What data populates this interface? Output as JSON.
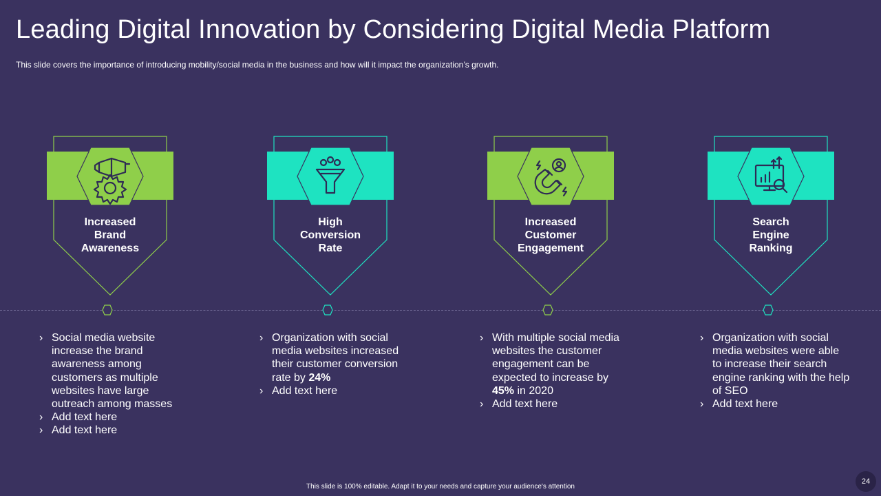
{
  "header": {
    "title": "Leading Digital Innovation by Considering Digital Media Platform",
    "subtitle": "This slide covers the importance of introducing mobility/social media in the business and how will it impact the organization’s growth."
  },
  "colors": {
    "background": "#3a325f",
    "green": "#8fcf4a",
    "teal": "#1ee3c1",
    "icon_stroke": "#2e2a55"
  },
  "cards": [
    {
      "icon": "megaphone-badge-icon",
      "label_lines": [
        "Increased",
        "Brand",
        "Awareness"
      ],
      "accent": "green",
      "bullets": [
        {
          "pre": "Social media website increase the brand awareness among customers as multiple websites have large outreach among masses",
          "bold": "",
          "post": ""
        },
        {
          "pre": "Add text here",
          "bold": "",
          "post": ""
        },
        {
          "pre": "Add text here",
          "bold": "",
          "post": ""
        }
      ]
    },
    {
      "icon": "funnel-icon",
      "label_lines": [
        "High",
        "Conversion",
        "Rate"
      ],
      "accent": "teal",
      "bullets": [
        {
          "pre": "Organization with social media websites increased their customer conversion rate by ",
          "bold": "24%",
          "post": ""
        },
        {
          "pre": "Add text here",
          "bold": "",
          "post": ""
        }
      ]
    },
    {
      "icon": "magnet-user-icon",
      "label_lines": [
        "Increased",
        "Customer",
        "Engagement"
      ],
      "accent": "green",
      "bullets": [
        {
          "pre": "With multiple social media websites the customer engagement can be expected to increase by ",
          "bold": "45%",
          "post": " in 2020"
        },
        {
          "pre": "Add text here",
          "bold": "",
          "post": ""
        }
      ]
    },
    {
      "icon": "chart-search-icon",
      "label_lines": [
        "Search",
        "Engine",
        "Ranking"
      ],
      "accent": "teal",
      "bullets": [
        {
          "pre": "Organization with social media websites were able to increase their search engine ranking with the help of SEO",
          "bold": "",
          "post": ""
        },
        {
          "pre": "Add text here",
          "bold": "",
          "post": ""
        }
      ]
    }
  ],
  "footer": {
    "note": "This slide is 100% editable. Adapt it to your needs and capture your audience's attention",
    "page_number": "24"
  }
}
